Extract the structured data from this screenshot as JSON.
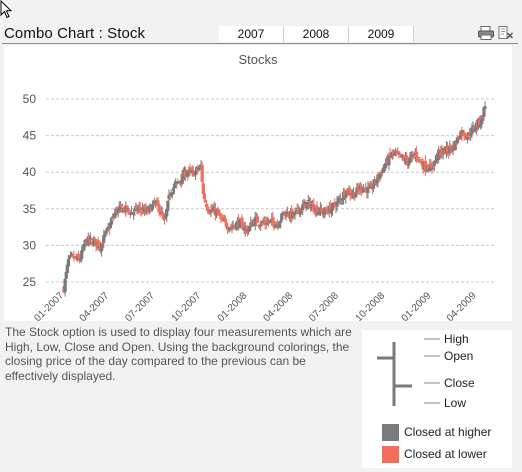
{
  "header": {
    "title": "Combo Chart : Stock",
    "tabs": [
      "2007",
      "2008",
      "2009"
    ],
    "icons": [
      "printer-icon",
      "clear-selection-icon"
    ]
  },
  "description": "The Stock option is used to display four measurements which are High, Low, Close and Open. Using the background colorings, the closing price of the day compared to the previous can be effectively displayed.",
  "legend": {
    "high": "High",
    "open": "Open",
    "close": "Close",
    "low": "Low",
    "closed_higher": "Closed at higher",
    "closed_lower": "Closed at lower"
  },
  "colors": {
    "higher": "#7a7a7a",
    "lower": "#f46c5c",
    "grid": "#c8c8c8",
    "axis_text": "#555555"
  },
  "chart_data": {
    "type": "stock",
    "title": "Stocks",
    "xlabel": "",
    "ylabel": "",
    "ylim": [
      22,
      52
    ],
    "yticks": [
      25,
      30,
      35,
      40,
      45,
      50
    ],
    "xticks": [
      "01-2007",
      "04-2007",
      "07-2007",
      "10-2007",
      "01-2008",
      "04-2008",
      "07-2008",
      "10-2008",
      "01-2009",
      "04-2009"
    ],
    "grid": true,
    "series_names": [
      "High",
      "Low",
      "Close",
      "Open"
    ],
    "close_path": [
      [
        "2007-01-01",
        24.2
      ],
      [
        "2007-01-10",
        28.0
      ],
      [
        "2007-01-20",
        28.3
      ],
      [
        "2007-02-01",
        28.0
      ],
      [
        "2007-02-15",
        30.7
      ],
      [
        "2007-03-01",
        30.5
      ],
      [
        "2007-03-15",
        30.0
      ],
      [
        "2007-04-01",
        32.5
      ],
      [
        "2007-04-15",
        34.8
      ],
      [
        "2007-05-01",
        35.0
      ],
      [
        "2007-05-15",
        34.5
      ],
      [
        "2007-06-01",
        35.0
      ],
      [
        "2007-06-15",
        34.5
      ],
      [
        "2007-07-01",
        35.8
      ],
      [
        "2007-07-10",
        35.0
      ],
      [
        "2007-07-20",
        33.0
      ],
      [
        "2007-08-01",
        37.5
      ],
      [
        "2007-08-15",
        38.5
      ],
      [
        "2007-09-01",
        40.0
      ],
      [
        "2007-09-15",
        39.8
      ],
      [
        "2007-10-01",
        40.8
      ],
      [
        "2007-10-05",
        37.0
      ],
      [
        "2007-10-15",
        35.0
      ],
      [
        "2007-11-01",
        34.5
      ],
      [
        "2007-11-15",
        33.0
      ],
      [
        "2007-12-01",
        32.5
      ],
      [
        "2007-12-15",
        33.2
      ],
      [
        "2008-01-01",
        32.0
      ],
      [
        "2008-01-15",
        33.5
      ],
      [
        "2008-02-01",
        33.0
      ],
      [
        "2008-02-15",
        33.2
      ],
      [
        "2008-03-01",
        33.0
      ],
      [
        "2008-03-15",
        34.5
      ],
      [
        "2008-04-01",
        34.0
      ],
      [
        "2008-04-15",
        35.0
      ],
      [
        "2008-05-01",
        35.8
      ],
      [
        "2008-05-15",
        35.0
      ],
      [
        "2008-06-01",
        34.5
      ],
      [
        "2008-06-15",
        35.0
      ],
      [
        "2008-07-01",
        36.0
      ],
      [
        "2008-07-15",
        37.5
      ],
      [
        "2008-08-01",
        37.0
      ],
      [
        "2008-08-15",
        38.0
      ],
      [
        "2008-09-01",
        37.5
      ],
      [
        "2008-09-15",
        39.0
      ],
      [
        "2008-10-01",
        41.0
      ],
      [
        "2008-10-15",
        42.5
      ],
      [
        "2008-11-01",
        42.0
      ],
      [
        "2008-11-15",
        41.5
      ],
      [
        "2008-12-01",
        42.5
      ],
      [
        "2008-12-15",
        41.0
      ],
      [
        "2009-01-01",
        40.5
      ],
      [
        "2009-01-15",
        42.5
      ],
      [
        "2009-02-01",
        43.0
      ],
      [
        "2009-02-15",
        43.5
      ],
      [
        "2009-03-01",
        45.5
      ],
      [
        "2009-03-15",
        45.0
      ],
      [
        "2009-04-01",
        46.5
      ],
      [
        "2009-04-10",
        47.0
      ],
      [
        "2009-04-20",
        49.5
      ]
    ]
  }
}
